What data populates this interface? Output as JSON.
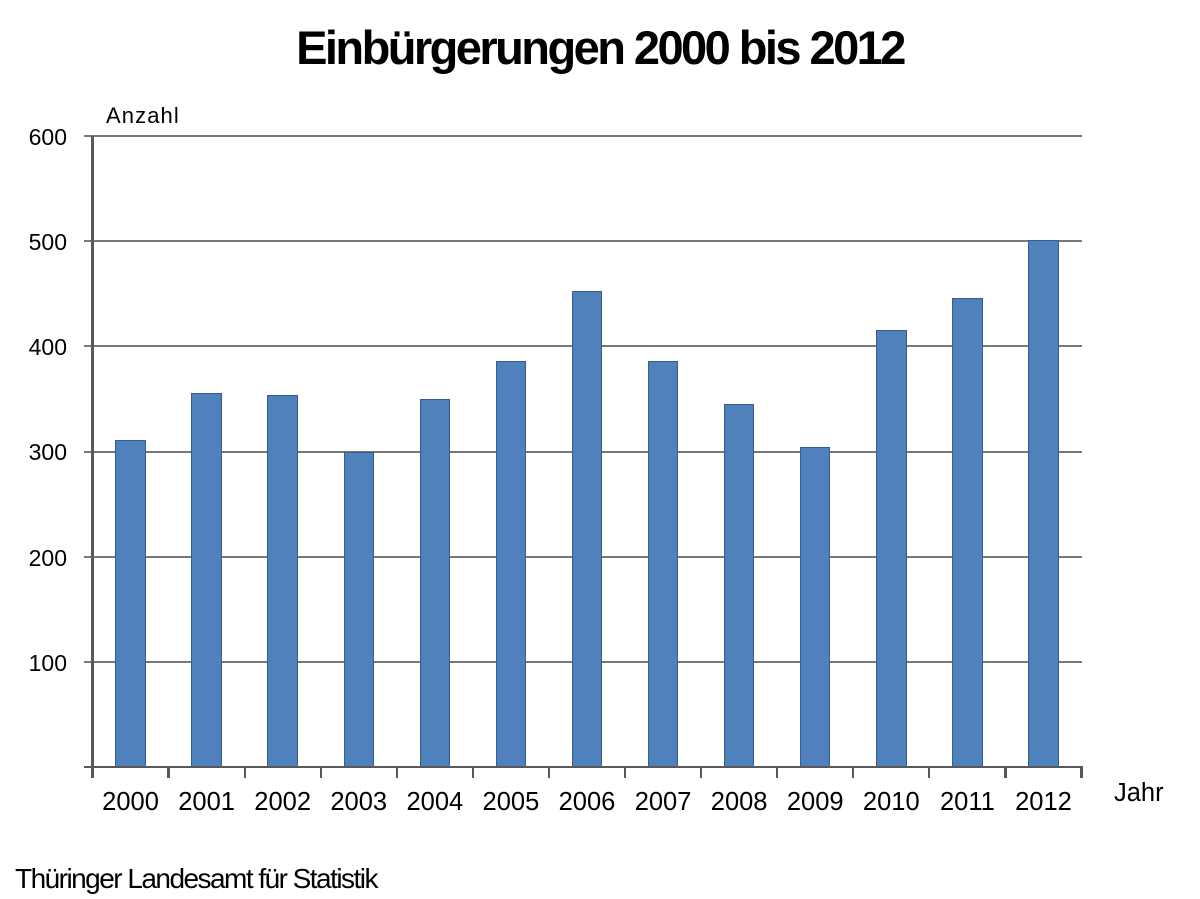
{
  "chart_data": {
    "type": "bar",
    "title": "Einbürgerungen 2000 bis 2012",
    "ylabel": "Anzahl",
    "xlabel": "Jahr",
    "source": "Thüringer Landesamt für Statistik",
    "categories": [
      "2000",
      "2001",
      "2002",
      "2003",
      "2004",
      "2005",
      "2006",
      "2007",
      "2008",
      "2009",
      "2010",
      "2011",
      "2012"
    ],
    "values": [
      311,
      356,
      354,
      300,
      350,
      386,
      453,
      386,
      345,
      304,
      416,
      446,
      501
    ],
    "ylim": [
      0,
      600
    ],
    "ytick_step": 100,
    "ytick_labels": [
      "100",
      "200",
      "300",
      "400",
      "500",
      "600"
    ],
    "grid": "horizontal",
    "legend": "none",
    "colors": {
      "bar_fill": "#4f81bd",
      "bar_border": "#385d8a",
      "gridline": "#787878",
      "axis": "#595959",
      "text": "#000000",
      "background": "#ffffff"
    }
  }
}
